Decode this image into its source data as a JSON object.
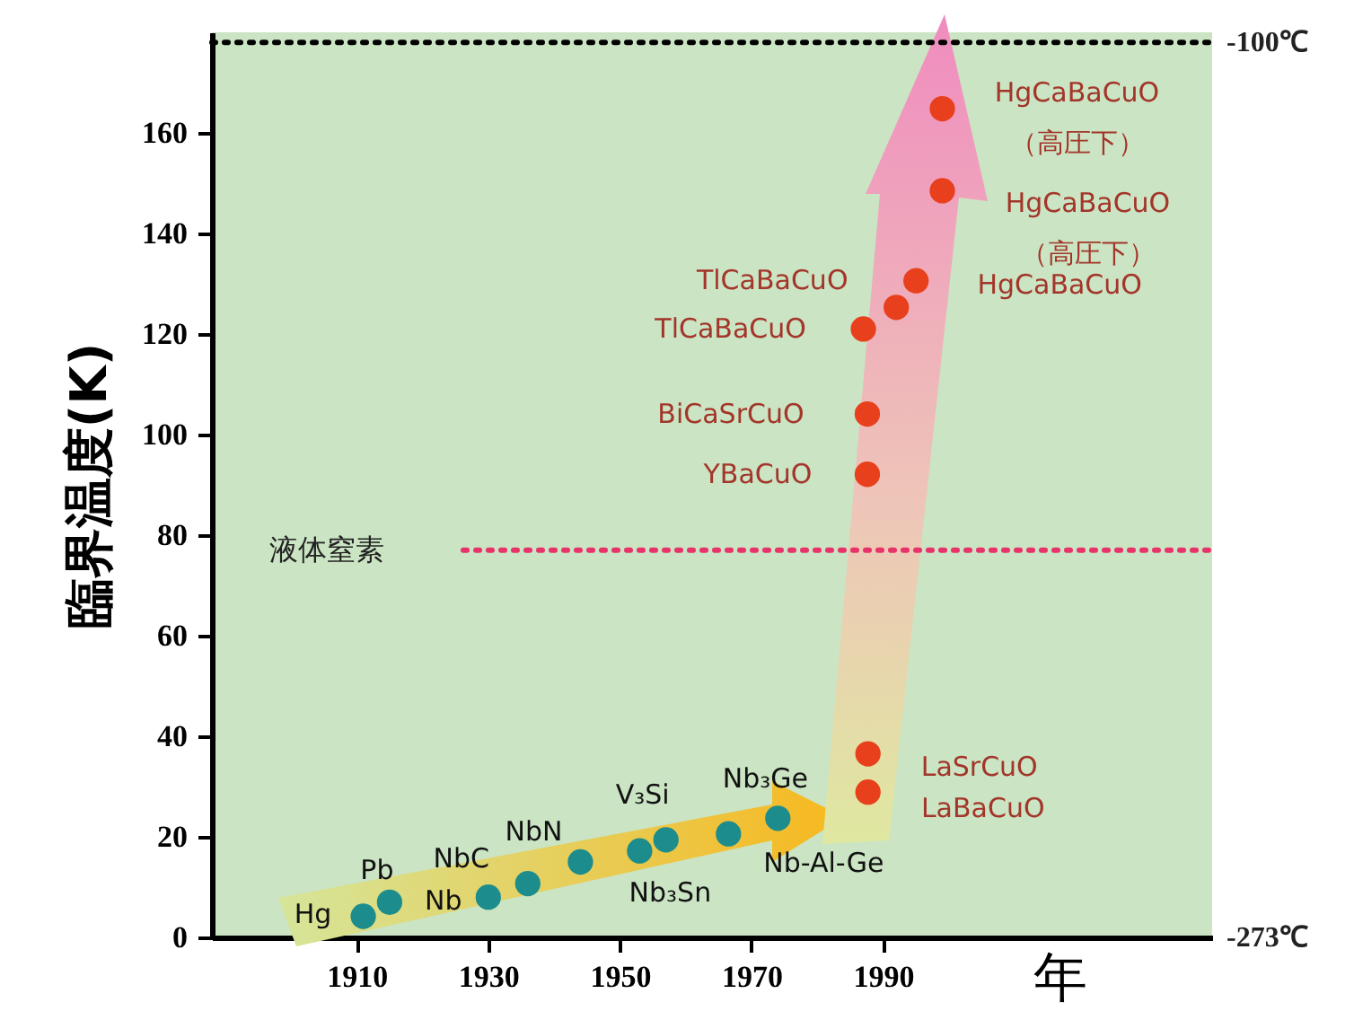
{
  "chart_data": {
    "type": "scatter",
    "xlabel": "年",
    "ylabel": "臨界温度(K)",
    "xlim": [
      1888,
      2040
    ],
    "xticks": [
      1910,
      1930,
      1950,
      1970,
      1990
    ],
    "ylim": [
      0,
      180
    ],
    "yticks": [
      0,
      20,
      40,
      60,
      80,
      100,
      120,
      140,
      160
    ],
    "grid": false,
    "marker": "circle",
    "series": [
      {
        "color": "#1d8c8c",
        "x": [
          1911,
          1915,
          1930,
          1936,
          1944,
          1953,
          1957,
          1966.5,
          1974
        ],
        "values": [
          4.2,
          7,
          8,
          10.7,
          15,
          17.2,
          19.4,
          20.6,
          23.7
        ]
      },
      {
        "color": "#e8401c",
        "x": [
          1987.7,
          1987.7,
          1987.6,
          1987.6,
          1987,
          1992,
          1995,
          1999,
          1999
        ],
        "values": [
          28.9,
          36.5,
          92.1,
          104.1,
          121,
          125.3,
          130.6,
          148.5,
          164.8
        ]
      }
    ],
    "ref_lines": [
      {
        "axis": "y",
        "value": 77,
        "label": "液体窒素",
        "color": "#e8336a",
        "line_style": "dotted"
      },
      {
        "axis": "y",
        "value": 178,
        "label": "-100℃",
        "color": "#000000",
        "line_style": "dotted"
      }
    ],
    "annotations": [
      "-273℃",
      {
        "text": "Hg",
        "x": 1911,
        "y": 4.2
      },
      {
        "text": "Pb",
        "x": 1915,
        "y": 7
      },
      {
        "text": "Nb",
        "x": 1930,
        "y": 8
      },
      {
        "text": "NbC",
        "x": 1936,
        "y": 10.7
      },
      {
        "text": "NbN",
        "x": 1944,
        "y": 15
      },
      {
        "text": "Nb₃Sn",
        "x": 1953,
        "y": 17.2
      },
      {
        "text": "V₃Si",
        "x": 1957,
        "y": 19.4
      },
      {
        "text": "Nb-Al-Ge",
        "x": 1966.5,
        "y": 20.6
      },
      {
        "text": "Nb₃Ge",
        "x": 1974,
        "y": 23.7
      },
      {
        "text": "LaBaCuO",
        "x": 1987.7,
        "y": 28.9
      },
      {
        "text": "LaSrCuO",
        "x": 1987.7,
        "y": 36.5
      },
      {
        "text": "YBaCuO",
        "x": 1987.6,
        "y": 92.1
      },
      {
        "text": "BiCaSrCuO",
        "x": 1987.6,
        "y": 104.1
      },
      {
        "text": "TlCaBaCuO",
        "x": 1987,
        "y": 121
      },
      {
        "text": "TlCaBaCuO",
        "x": 1992,
        "y": 125.3
      },
      {
        "text": "HgCaBaCuO",
        "x": 1995,
        "y": 130.6
      },
      {
        "text": "HgCaBaCuO\n（高圧下）",
        "x": 1999,
        "y": 148.5
      },
      {
        "text": "HgCaBaCuO\n（高圧下）",
        "x": 1999,
        "y": 164.8
      }
    ]
  }
}
